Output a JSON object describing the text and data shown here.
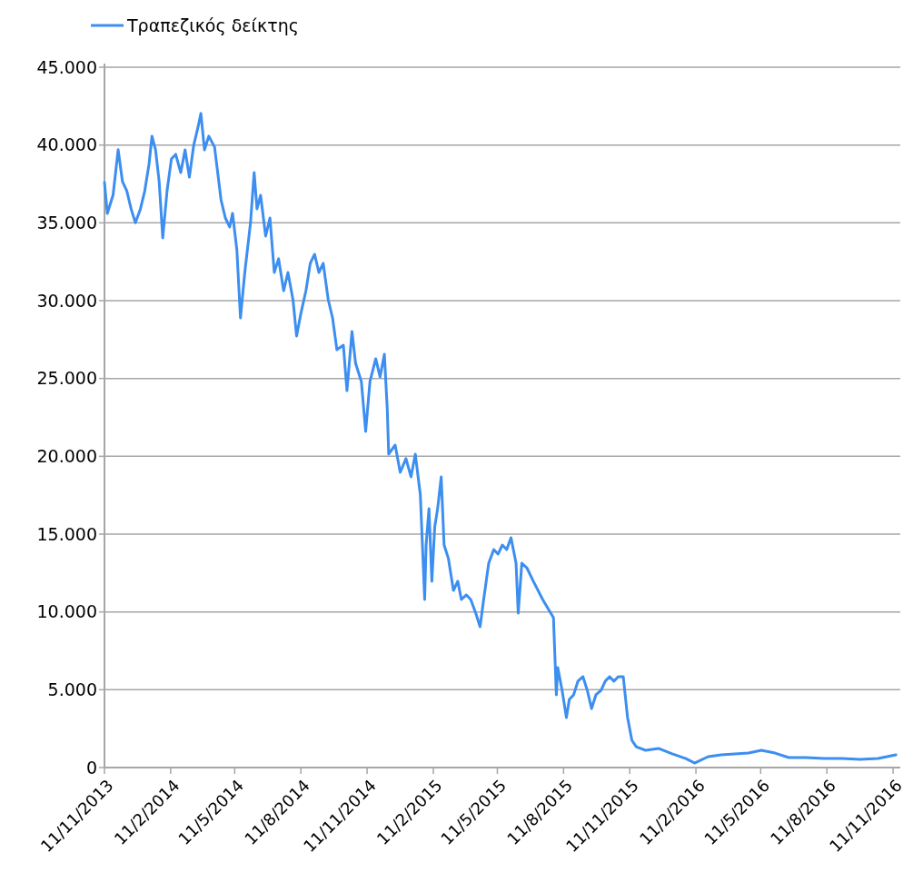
{
  "chart_data": {
    "type": "line",
    "legend": "top left",
    "grid": "y",
    "xlim": [
      "2013-11-11",
      "2016-11-21"
    ],
    "xticks": [
      {
        "value": "2013-11-11",
        "label": "11/11/2013"
      },
      {
        "value": "2014-02-11",
        "label": "11/2/2014"
      },
      {
        "value": "2014-05-11",
        "label": "11/5/2014"
      },
      {
        "value": "2014-08-11",
        "label": "11/8/2014"
      },
      {
        "value": "2014-11-11",
        "label": "11/11/2014"
      },
      {
        "value": "2015-02-11",
        "label": "11/2/2015"
      },
      {
        "value": "2015-05-11",
        "label": "11/5/2015"
      },
      {
        "value": "2015-08-11",
        "label": "11/8/2015"
      },
      {
        "value": "2015-11-11",
        "label": "11/11/2015"
      },
      {
        "value": "2016-02-11",
        "label": "11/2/2016"
      },
      {
        "value": "2016-05-11",
        "label": "11/5/2016"
      },
      {
        "value": "2016-08-11",
        "label": "11/8/2016"
      },
      {
        "value": "2016-11-11",
        "label": "11/11/2016"
      }
    ],
    "ylim": [
      0,
      45000
    ],
    "yticks": [
      0,
      {
        "value": 5000,
        "label": "5.000"
      },
      {
        "value": 10000,
        "label": "10.000"
      },
      {
        "value": 15000,
        "label": "15.000"
      },
      {
        "value": 20000,
        "label": "20.000"
      },
      {
        "value": 25000,
        "label": "25.000"
      },
      {
        "value": 30000,
        "label": "30.000"
      },
      {
        "value": 35000,
        "label": "35.000"
      },
      {
        "value": 40000,
        "label": "40.000"
      },
      {
        "value": 45000,
        "label": "45.000"
      }
    ],
    "series": [
      {
        "name": "Τραπεζικός δείκτης",
        "color": "#3c8ef0",
        "x": [
          "2013-11-11",
          "2013-11-15",
          "2013-11-23",
          "2013-11-30",
          "2013-12-06",
          "2013-12-12",
          "2013-12-18",
          "2013-12-24",
          "2013-12-31",
          "2014-01-06",
          "2014-01-12",
          "2014-01-16",
          "2014-01-21",
          "2014-01-26",
          "2014-01-31",
          "2014-02-06",
          "2014-02-12",
          "2014-02-18",
          "2014-02-25",
          "2014-03-03",
          "2014-03-09",
          "2014-03-15",
          "2014-03-21",
          "2014-03-25",
          "2014-03-30",
          "2014-04-05",
          "2014-04-13",
          "2014-04-22",
          "2014-04-28",
          "2014-05-04",
          "2014-05-08",
          "2014-05-14",
          "2014-05-19",
          "2014-05-25",
          "2014-06-02",
          "2014-06-07",
          "2014-06-11",
          "2014-06-16",
          "2014-06-23",
          "2014-06-29",
          "2014-07-05",
          "2014-07-11",
          "2014-07-18",
          "2014-07-24",
          "2014-07-31",
          "2014-08-05",
          "2014-08-11",
          "2014-08-18",
          "2014-08-24",
          "2014-08-30",
          "2014-09-05",
          "2014-09-11",
          "2014-09-18",
          "2014-09-24",
          "2014-09-30",
          "2014-10-09",
          "2014-10-14",
          "2014-10-21",
          "2014-10-26",
          "2014-11-03",
          "2014-11-09",
          "2014-11-15",
          "2014-11-23",
          "2014-11-29",
          "2014-12-05",
          "2014-12-09",
          "2014-12-11",
          "2014-12-20",
          "2014-12-27",
          "2015-01-04",
          "2015-01-11",
          "2015-01-17",
          "2015-01-24",
          "2015-01-30",
          "2015-02-01",
          "2015-02-05",
          "2015-02-09",
          "2015-02-13",
          "2015-02-17",
          "2015-02-22",
          "2015-02-26",
          "2015-03-04",
          "2015-03-11",
          "2015-03-17",
          "2015-03-22",
          "2015-03-29",
          "2015-04-04",
          "2015-04-11",
          "2015-04-17",
          "2015-04-22",
          "2015-04-29",
          "2015-05-06",
          "2015-05-12",
          "2015-05-18",
          "2015-05-24",
          "2015-05-30",
          "2015-06-06",
          "2015-06-09",
          "2015-06-14",
          "2015-06-21",
          "2015-06-30",
          "2015-07-13",
          "2015-07-28",
          "2015-08-01",
          "2015-08-03",
          "2015-08-09",
          "2015-08-15",
          "2015-08-19",
          "2015-08-25",
          "2015-08-31",
          "2015-09-07",
          "2015-09-13",
          "2015-09-19",
          "2015-09-25",
          "2015-10-02",
          "2015-10-08",
          "2015-10-14",
          "2015-10-20",
          "2015-10-26",
          "2015-11-02",
          "2015-11-08",
          "2015-11-14",
          "2015-11-20",
          "2015-12-03",
          "2015-12-21",
          "2016-01-09",
          "2016-01-28",
          "2016-02-09",
          "2016-02-28",
          "2016-03-17",
          "2016-04-05",
          "2016-04-24",
          "2016-05-12",
          "2016-05-31",
          "2016-06-19",
          "2016-07-13",
          "2016-08-07",
          "2016-09-01",
          "2016-09-26",
          "2016-10-21",
          "2016-11-15"
        ],
        "values": [
          37600,
          35600,
          36800,
          39700,
          37650,
          37060,
          35900,
          35000,
          35900,
          37060,
          38800,
          40570,
          39690,
          37650,
          34030,
          37060,
          39100,
          39400,
          38230,
          39690,
          37940,
          39980,
          41150,
          42030,
          39690,
          40570,
          39870,
          36480,
          35310,
          34730,
          35610,
          33270,
          28890,
          31810,
          35020,
          38230,
          35900,
          36770,
          34150,
          35310,
          31810,
          32690,
          30640,
          31810,
          30060,
          27730,
          29190,
          30640,
          32400,
          32980,
          31810,
          32400,
          30060,
          28890,
          26850,
          27140,
          24220,
          28020,
          25970,
          24810,
          21600,
          24810,
          26270,
          25100,
          26560,
          23060,
          20140,
          20720,
          18970,
          19850,
          18680,
          20140,
          17510,
          10800,
          14300,
          16630,
          11970,
          15470,
          16630,
          18680,
          14300,
          13430,
          11380,
          11970,
          10800,
          11090,
          10800,
          9920,
          9050,
          10800,
          13130,
          14010,
          13720,
          14300,
          14010,
          14770,
          13130,
          9920,
          13130,
          12840,
          11970,
          10800,
          9630,
          4670,
          6420,
          4960,
          3210,
          4380,
          4670,
          5550,
          5840,
          4960,
          3790,
          4670,
          4960,
          5550,
          5840,
          5550,
          5840,
          5840,
          3210,
          1750,
          1340,
          1110,
          1230,
          880,
          580,
          290,
          700,
          820,
          880,
          930,
          1110,
          930,
          640,
          640,
          580,
          580,
          530,
          580,
          820
        ]
      }
    ]
  }
}
